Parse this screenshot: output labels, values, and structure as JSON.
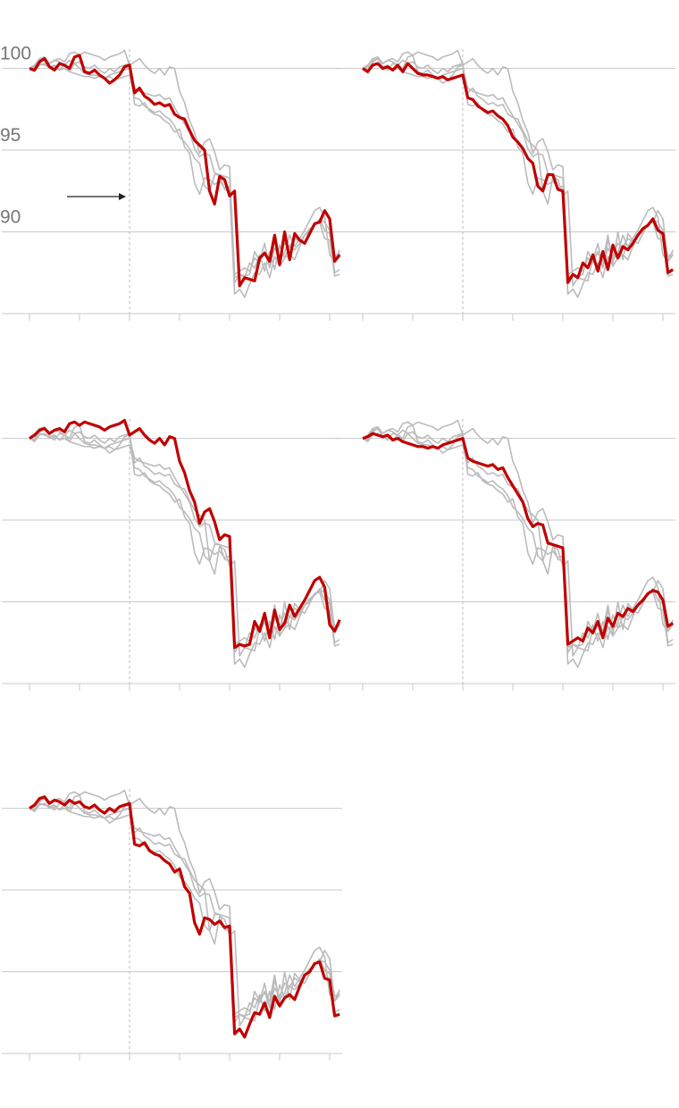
{
  "chart_data": {
    "type": "line",
    "grid": true,
    "color": "#bbbbbb",
    "highlight_color": "#c00000",
    "xlim": [
      0,
      62.5
    ],
    "xticks": [
      0,
      10,
      20,
      30,
      40,
      50,
      60
    ],
    "reference_x": 20,
    "ylim": [
      85,
      102
    ],
    "yticks": [
      100,
      95,
      90
    ],
    "series": [
      {
        "values": [
          100,
          99.9,
          100.4,
          100.6,
          100.1,
          99.9,
          100.3,
          100.2,
          100,
          100.7,
          100.8,
          99.8,
          99.7,
          99.9,
          99.6,
          99.4,
          99.1,
          99.3,
          99.6,
          100.1,
          100.2,
          98.5,
          98.8,
          98.3,
          98.1,
          97.8,
          97.9,
          97.7,
          97.8,
          97.2,
          97,
          96.9,
          96.2,
          95.6,
          95.3,
          95,
          92.5,
          91.7,
          93.4,
          93.2,
          92.2,
          92.5,
          86.7,
          87.2,
          87.1,
          87,
          88.4,
          88.7,
          88.2,
          89.8,
          88,
          90,
          88.3,
          89.9,
          89.5,
          89.3,
          89.9,
          90.5,
          90.6,
          91.3,
          90.8,
          88.2,
          88.6
        ]
      },
      {
        "values": [
          100,
          99.8,
          100.2,
          100.3,
          100,
          100.1,
          99.9,
          100.2,
          99.8,
          100.3,
          100,
          99.7,
          99.6,
          99.6,
          99.5,
          99.4,
          99.5,
          99.3,
          99.4,
          99.5,
          99.6,
          98.2,
          98.1,
          97.7,
          97.5,
          97.3,
          97.4,
          97.1,
          96.9,
          96.5,
          95.8,
          95.5,
          95.1,
          94.5,
          94.2,
          92.8,
          92.5,
          93.5,
          93.5,
          92.6,
          92.5,
          86.9,
          87.4,
          87.2,
          88.1,
          87.8,
          88.6,
          87.6,
          88.8,
          87.7,
          89.2,
          88.4,
          89.1,
          88.9,
          89.3,
          89.8,
          90.2,
          90.4,
          90.8,
          90.1,
          89.9,
          87.5,
          87.7
        ]
      },
      {
        "values": [
          100,
          100.2,
          100.5,
          100.6,
          100.3,
          100.5,
          100.6,
          100.4,
          100.9,
          101,
          100.8,
          101,
          100.9,
          100.8,
          100.7,
          100.5,
          100.7,
          100.8,
          100.9,
          101.1,
          100.2,
          100.4,
          100.6,
          100.2,
          99.9,
          99.7,
          100,
          99.6,
          100.1,
          100,
          98.6,
          97.9,
          96.8,
          96.1,
          94.8,
          95.5,
          95.7,
          94.9,
          93.8,
          94.1,
          94,
          87.2,
          87.4,
          87.3,
          87.4,
          88.8,
          88.2,
          89.3,
          87.8,
          89.5,
          88.3,
          88.7,
          89.8,
          89.1,
          89.6,
          90.1,
          90.7,
          91.3,
          91.5,
          90.9,
          88.6,
          88.2,
          88.9
        ]
      },
      {
        "values": [
          100,
          100.1,
          100.3,
          100.2,
          100.1,
          100.2,
          99.9,
          100,
          99.8,
          99.7,
          99.6,
          99.5,
          99.5,
          99.4,
          99.5,
          99.4,
          99.6,
          99.7,
          99.8,
          99.9,
          100,
          98.8,
          98.6,
          98.5,
          98.4,
          98.3,
          98.4,
          98.1,
          98.2,
          97.6,
          97.1,
          96.6,
          96.1,
          95.1,
          94.6,
          94.8,
          94.7,
          93.6,
          93.5,
          93.4,
          93.3,
          87.4,
          87.6,
          87.8,
          87.6,
          88.4,
          88.1,
          88.8,
          87.8,
          89,
          88.5,
          89.3,
          89.1,
          89.6,
          89.4,
          89.8,
          90.1,
          90.5,
          90.7,
          90.6,
          90.1,
          88.5,
          88.7
        ]
      },
      {
        "values": [
          100,
          100.2,
          100.6,
          100.7,
          100.3,
          100.5,
          100.4,
          100.2,
          100.5,
          100.3,
          100.4,
          100.1,
          100,
          100.2,
          99.9,
          99.7,
          100,
          99.8,
          100.1,
          100.2,
          100.3,
          97.8,
          97.7,
          97.9,
          97.4,
          97.2,
          97.1,
          96.8,
          96.6,
          96.1,
          96.3,
          95.2,
          94.8,
          93,
          92.3,
          93.3,
          93.2,
          92.9,
          93.1,
          92.7,
          92.8,
          86.2,
          86.5,
          86,
          86.8,
          87.5,
          87.4,
          88.1,
          87.2,
          88.5,
          87.9,
          88.4,
          88.6,
          88.3,
          89.1,
          89.8,
          90,
          90.5,
          90.6,
          89.6,
          89.5,
          87.3,
          87.4
        ]
      }
    ]
  }
}
